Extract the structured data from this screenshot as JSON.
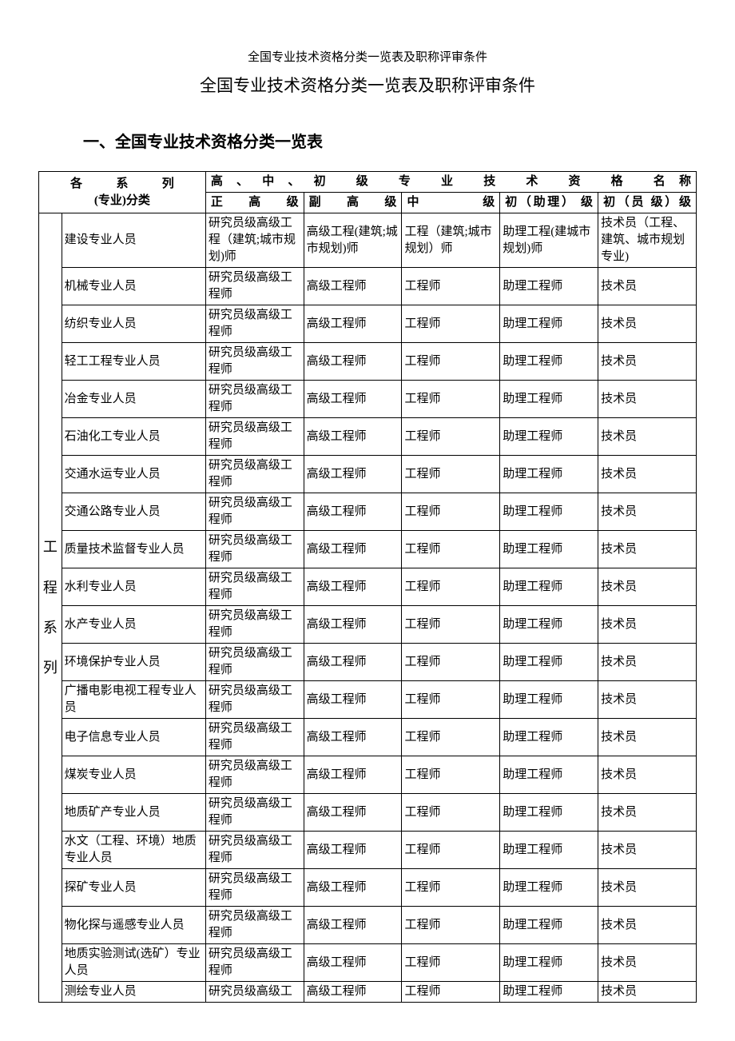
{
  "page": {
    "header_small": "全国专业技术资格分类一览表及职称评审条件",
    "header_large": "全国专业技术资格分类一览表及职称评审条件",
    "section_title": "一、全国专业技术资格分类一览表"
  },
  "colors": {
    "background": "#ffffff",
    "text": "#000000",
    "border": "#000000"
  },
  "fonts": {
    "body_family": "SimSun",
    "header_small_pt": 15,
    "header_large_pt": 21,
    "section_title_pt": 20,
    "table_pt": 15
  },
  "table": {
    "header": {
      "series_line1": "各 系 列",
      "series_line2": "(专业)分类",
      "levels_title": "高、中、初 级 专 业 技 术 资 格 名称",
      "col_zheng": "正 高 级",
      "col_fu": "副 高 级",
      "col_zhong": "中   级",
      "col_chuzhu": "初（助理） 级",
      "col_chuyuan": "初（员 级）级"
    },
    "series_label": "工程系列",
    "rows": [
      {
        "prof": "建设专业人员",
        "c1": "研究员级高级工程（建筑;城市规划)师",
        "c2": "高级工程(建筑;城市规划)师",
        "c3": "工程（建筑;城市规划）师",
        "c4": "助理工程(建城市规划)师",
        "c5": "技术员（工程、建筑、城市规划专业)"
      },
      {
        "prof": "机械专业人员",
        "c1": "研究员级高级工程师",
        "c2": "高级工程师",
        "c3": "工程师",
        "c4": "助理工程师",
        "c5": "技术员"
      },
      {
        "prof": "纺织专业人员",
        "c1": "研究员级高级工程师",
        "c2": "高级工程师",
        "c3": "工程师",
        "c4": "助理工程师",
        "c5": "技术员"
      },
      {
        "prof": "轻工工程专业人员",
        "c1": "研究员级高级工程师",
        "c2": "高级工程师",
        "c3": "工程师",
        "c4": "助理工程师",
        "c5": "技术员"
      },
      {
        "prof": "冶金专业人员",
        "c1": "研究员级高级工程师",
        "c2": "高级工程师",
        "c3": "工程师",
        "c4": "助理工程师",
        "c5": "技术员"
      },
      {
        "prof": "石油化工专业人员",
        "c1": "研究员级高级工程师",
        "c2": "高级工程师",
        "c3": "工程师",
        "c4": "助理工程师",
        "c5": "技术员"
      },
      {
        "prof": "交通水运专业人员",
        "c1": "研究员级高级工程师",
        "c2": "高级工程师",
        "c3": "工程师",
        "c4": "助理工程师",
        "c5": "技术员"
      },
      {
        "prof": "交通公路专业人员",
        "c1": "研究员级高级工程师",
        "c2": "高级工程师",
        "c3": "工程师",
        "c4": "助理工程师",
        "c5": "技术员"
      },
      {
        "prof": "质量技术监督专业人员",
        "c1": "研究员级高级工程师",
        "c2": "高级工程师",
        "c3": "工程师",
        "c4": "助理工程师",
        "c5": "技术员"
      },
      {
        "prof": "水利专业人员",
        "c1": "研究员级高级工程师",
        "c2": "高级工程师",
        "c3": "工程师",
        "c4": "助理工程师",
        "c5": "技术员"
      },
      {
        "prof": "水产专业人员",
        "c1": "研究员级高级工程师",
        "c2": "高级工程师",
        "c3": "工程师",
        "c4": "助理工程师",
        "c5": "技术员"
      },
      {
        "prof": "环境保护专业人员",
        "c1": "研究员级高级工程师",
        "c2": "高级工程师",
        "c3": "工程师",
        "c4": "助理工程师",
        "c5": "技术员"
      },
      {
        "prof": "广播电影电视工程专业人员",
        "c1": "研究员级高级工程师",
        "c2": "高级工程师",
        "c3": "工程师",
        "c4": "助理工程师",
        "c5": "技术员"
      },
      {
        "prof": "电子信息专业人员",
        "c1": "研究员级高级工程师",
        "c2": "高级工程师",
        "c3": "工程师",
        "c4": "助理工程师",
        "c5": "技术员"
      },
      {
        "prof": "煤炭专业人员",
        "c1": "研究员级高级工程师",
        "c2": "高级工程师",
        "c3": "工程师",
        "c4": "助理工程师",
        "c5": "技术员"
      },
      {
        "prof": "地质矿产专业人员",
        "c1": "研究员级高级工程师",
        "c2": "高级工程师",
        "c3": "工程师",
        "c4": "助理工程师",
        "c5": "技术员"
      },
      {
        "prof": "水文（工程、环境）地质专业人员",
        "c1": "研究员级高级工程师",
        "c2": "高级工程师",
        "c3": "工程师",
        "c4": "助理工程师",
        "c5": "技术员"
      },
      {
        "prof": "探矿专业人员",
        "c1": "研究员级高级工程师",
        "c2": "高级工程师",
        "c3": "工程师",
        "c4": "助理工程师",
        "c5": "技术员"
      },
      {
        "prof": "物化探与遥感专业人员",
        "c1": "研究员级高级工程师",
        "c2": "高级工程师",
        "c3": "工程师",
        "c4": "助理工程师",
        "c5": "技术员"
      },
      {
        "prof": "地质实验测试(选矿）专业人员",
        "c1": "研究员级高级工程师",
        "c2": "高级工程师",
        "c3": "工程师",
        "c4": "助理工程师",
        "c5": "技术员"
      },
      {
        "prof": "测绘专业人员",
        "c1": "研究员级高级工",
        "c2": "高级工程师",
        "c3": "工程师",
        "c4": "助理工程师",
        "c5": "技术员"
      }
    ]
  }
}
